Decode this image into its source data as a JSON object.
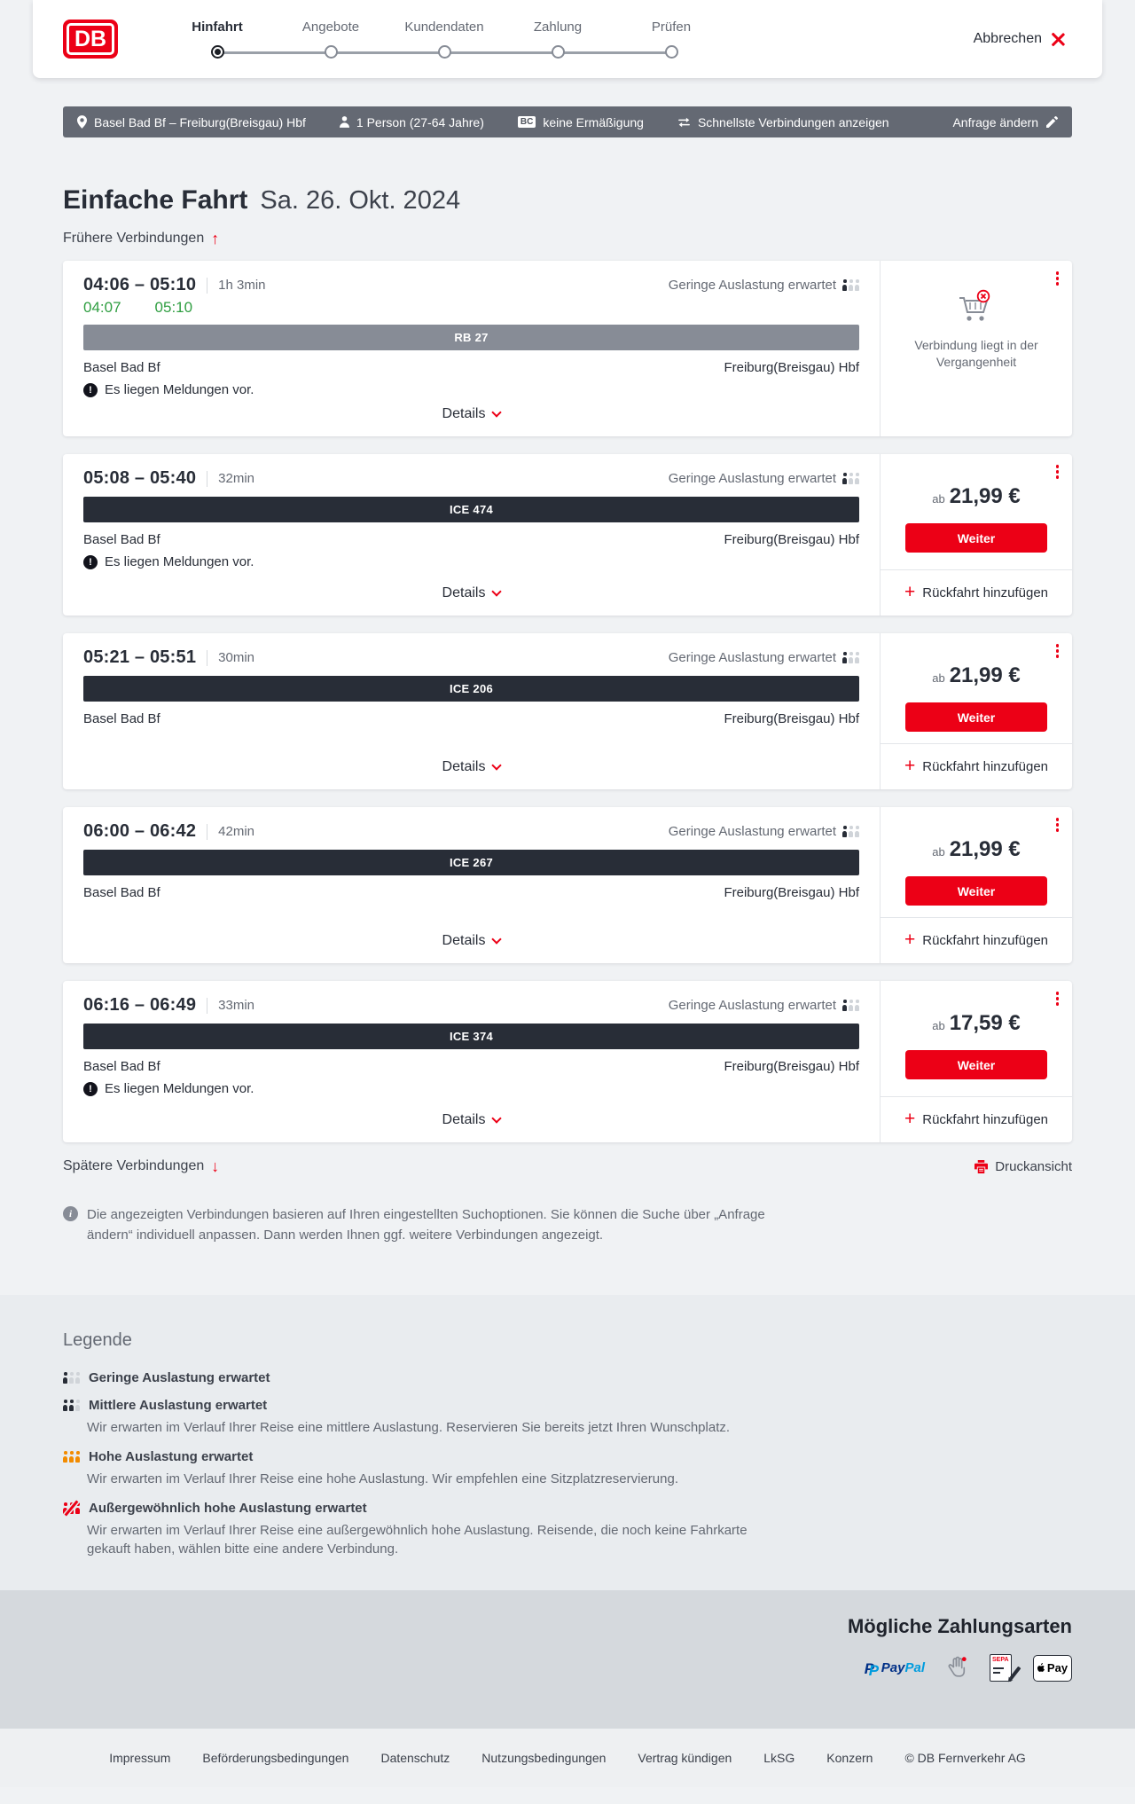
{
  "header": {
    "logo_text": "DB",
    "steps": [
      {
        "label": "Hinfahrt",
        "active": true
      },
      {
        "label": "Angebote",
        "active": false
      },
      {
        "label": "Kundendaten",
        "active": false
      },
      {
        "label": "Zahlung",
        "active": false
      },
      {
        "label": "Prüfen",
        "active": false
      }
    ],
    "cancel_label": "Abbrechen"
  },
  "search_bar": {
    "route": "Basel Bad Bf – Freiburg(Breisgau) Hbf",
    "passengers": "1 Person (27-64 Jahre)",
    "bahncard_badge": "BC",
    "discount": "keine Ermäßigung",
    "fastest_toggle": "Schnellste Verbindungen anzeigen",
    "edit_label": "Anfrage ändern"
  },
  "page": {
    "title": "Einfache Fahrt",
    "date": "Sa. 26. Okt. 2024",
    "earlier_label": "Frühere Verbindungen",
    "later_label": "Spätere Verbindungen",
    "print_label": "Druckansicht",
    "info_text": "Die angezeigten Verbindungen basieren auf Ihren eingestellten Suchoptionen. Sie können die Suche über „Anfrage ändern“ individuell anpassen. Dann werden Ihnen ggf. weitere Verbindungen angezeigt."
  },
  "connections": [
    {
      "time_range": "04:06 – 05:10",
      "duration": "1h 3min",
      "occupancy_label": "Geringe Auslastung erwartet",
      "realtime": {
        "depart": "04:07",
        "arrive": "05:10"
      },
      "train_label": "RB 27",
      "train_style": "regional",
      "from": "Basel Bad Bf",
      "to": "Freiburg(Breisgau) Hbf",
      "message": "Es liegen Meldungen vor.",
      "details_label": "Details",
      "past": true,
      "past_note": "Verbindung liegt in der Vergangenheit"
    },
    {
      "time_range": "05:08 – 05:40",
      "duration": "32min",
      "occupancy_label": "Geringe Auslastung erwartet",
      "train_label": "ICE 474",
      "train_style": "ice",
      "from": "Basel Bad Bf",
      "to": "Freiburg(Breisgau) Hbf",
      "message": "Es liegen Meldungen vor.",
      "details_label": "Details",
      "price_prefix": "ab",
      "price": "21,99 €",
      "cta_label": "Weiter",
      "add_return_label": "Rückfahrt hinzufügen"
    },
    {
      "time_range": "05:21 – 05:51",
      "duration": "30min",
      "occupancy_label": "Geringe Auslastung erwartet",
      "train_label": "ICE 206",
      "train_style": "ice",
      "from": "Basel Bad Bf",
      "to": "Freiburg(Breisgau) Hbf",
      "details_label": "Details",
      "price_prefix": "ab",
      "price": "21,99 €",
      "cta_label": "Weiter",
      "add_return_label": "Rückfahrt hinzufügen"
    },
    {
      "time_range": "06:00 – 06:42",
      "duration": "42min",
      "occupancy_label": "Geringe Auslastung erwartet",
      "train_label": "ICE 267",
      "train_style": "ice",
      "from": "Basel Bad Bf",
      "to": "Freiburg(Breisgau) Hbf",
      "details_label": "Details",
      "price_prefix": "ab",
      "price": "21,99 €",
      "cta_label": "Weiter",
      "add_return_label": "Rückfahrt hinzufügen"
    },
    {
      "time_range": "06:16 – 06:49",
      "duration": "33min",
      "occupancy_label": "Geringe Auslastung erwartet",
      "train_label": "ICE 374",
      "train_style": "ice",
      "from": "Basel Bad Bf",
      "to": "Freiburg(Breisgau) Hbf",
      "message": "Es liegen Meldungen vor.",
      "details_label": "Details",
      "price_prefix": "ab",
      "price": "17,59 €",
      "cta_label": "Weiter",
      "add_return_label": "Rückfahrt hinzufügen"
    }
  ],
  "legend": {
    "title": "Legende",
    "items": [
      {
        "type": "low",
        "label": "Geringe Auslastung erwartet",
        "description": ""
      },
      {
        "type": "mid",
        "label": "Mittlere Auslastung erwartet",
        "description": "Wir erwarten im Verlauf Ihrer Reise eine mittlere Auslastung. Reservieren Sie bereits jetzt Ihren Wunschplatz."
      },
      {
        "type": "high",
        "label": "Hohe Auslastung erwartet",
        "description": "Wir erwarten im Verlauf Ihrer Reise eine hohe Auslastung. Wir empfehlen eine Sitzplatzreservierung."
      },
      {
        "type": "extreme",
        "label": "Außergewöhnlich hohe Auslastung erwartet",
        "description": "Wir erwarten im Verlauf Ihrer Reise eine außergewöhnlich hohe Auslastung. Reisende, die noch keine Fahrkarte gekauft haben, wählen bitte eine andere Verbindung."
      }
    ]
  },
  "payment": {
    "title": "Mögliche Zahlungsarten",
    "paypal_text_1": "Pay",
    "paypal_text_2": "Pal",
    "sepa_text": "SEPA",
    "applepay_text": "Pay"
  },
  "footer": {
    "links": [
      "Impressum",
      "Beförderungsbedingungen",
      "Datenschutz",
      "Nutzungsbedingungen",
      "Vertrag kündigen",
      "LkSG",
      "Konzern"
    ],
    "copyright": "© DB Fernverkehr AG"
  }
}
